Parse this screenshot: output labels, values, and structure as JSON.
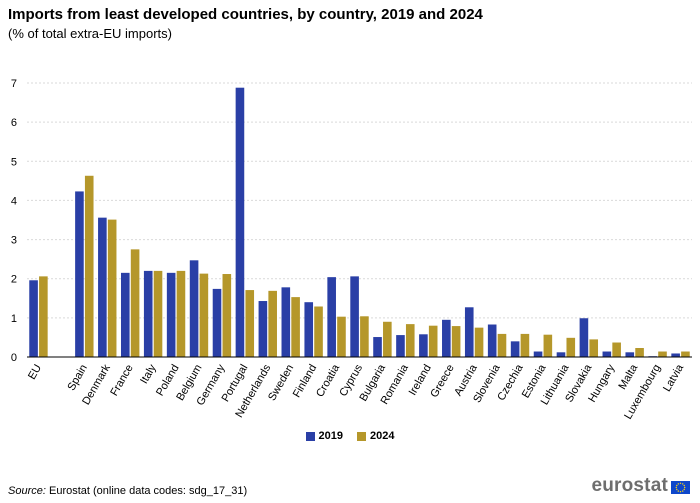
{
  "title": "Imports from least developed countries, by country, 2019 and 2024",
  "subtitle": "(% of total extra-EU imports)",
  "source": {
    "label": "Source:",
    "text": "Eurostat (online data codes: sdg_17_31)"
  },
  "logo_text": "eurostat",
  "colors": {
    "series_2019": "#2a3fa6",
    "series_2024": "#b5972a",
    "grid": "#d9d9d9",
    "axis": "#000000"
  },
  "chart_data": {
    "type": "bar",
    "title": "Imports from least developed countries, by country, 2019 and 2024",
    "ylabel": "% of total extra-EU imports",
    "ylim": [
      0,
      7
    ],
    "yticks": [
      0,
      1,
      2,
      3,
      4,
      5,
      6,
      7
    ],
    "grid": true,
    "legend_position": "bottom-center",
    "categories": [
      "EU",
      "",
      "Spain",
      "Denmark",
      "France",
      "Italy",
      "Poland",
      "Belgium",
      "Germany",
      "Portugal",
      "Netherlands",
      "Sweden",
      "Finland",
      "Croatia",
      "Cyprus",
      "Bulgaria",
      "Romania",
      "Ireland",
      "Greece",
      "Austria",
      "Slovenia",
      "Czechia",
      "Estonia",
      "Lithuania",
      "Slovakia",
      "Hungary",
      "Malta",
      "Luxembourg",
      "Latvia"
    ],
    "series": [
      {
        "name": "2019",
        "values": [
          1.96,
          null,
          4.23,
          3.56,
          2.15,
          2.2,
          2.15,
          2.47,
          1.74,
          6.88,
          1.43,
          1.78,
          1.4,
          2.04,
          2.06,
          0.51,
          0.56,
          0.58,
          0.95,
          1.27,
          0.83,
          0.4,
          0.14,
          0.12,
          0.99,
          0.14,
          0.12,
          0.02,
          0.09
        ]
      },
      {
        "name": "2024",
        "values": [
          2.06,
          null,
          4.63,
          3.51,
          2.75,
          2.2,
          2.2,
          2.13,
          2.12,
          1.71,
          1.69,
          1.53,
          1.29,
          1.03,
          1.04,
          0.9,
          0.84,
          0.8,
          0.79,
          0.75,
          0.59,
          0.59,
          0.57,
          0.49,
          0.45,
          0.37,
          0.23,
          0.14,
          0.14
        ]
      }
    ]
  }
}
